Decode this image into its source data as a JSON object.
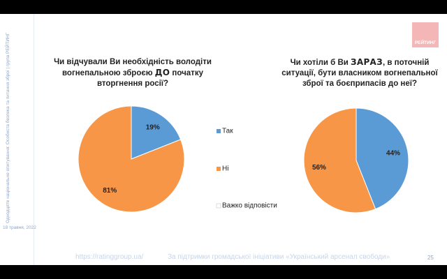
{
  "slide": {
    "sidebar": "Однодцяте національне опитування: Особиста безпека та питання зброї | група РЕЙТИНГ",
    "date": "18 травня, 2022",
    "url": "https://ratinggroup.ua/",
    "support": "За підтримки  громадської ініціативи «Український арсенал свободи»",
    "page": "25",
    "logo": "РЕЙТИНГ"
  },
  "chart_data": [
    {
      "type": "pie",
      "title": [
        "Чи відчували Ви необхідність володіти вогнепальною зброєю ",
        "ДО",
        " початку вторгнення росії?"
      ],
      "categories": [
        "Так",
        "Ні",
        "Важко відповісти"
      ],
      "values": [
        19,
        81,
        0
      ],
      "value_labels": [
        "19%",
        "81%",
        null
      ],
      "colors": [
        "#5b9bd5",
        "#f79646",
        "#ffffff"
      ],
      "legend": "right"
    },
    {
      "type": "pie",
      "title": [
        "Чи хотіли б Ви ",
        "ЗАРАЗ",
        ", в поточній ситуації, бути власником вогнепальної зброї та боєприпасів до неї?"
      ],
      "values": [
        44,
        56,
        0
      ],
      "value_labels": [
        "44%",
        "56%",
        null
      ],
      "colors": [
        "#5b9bd5",
        "#f79646",
        "#ffffff"
      ]
    }
  ]
}
